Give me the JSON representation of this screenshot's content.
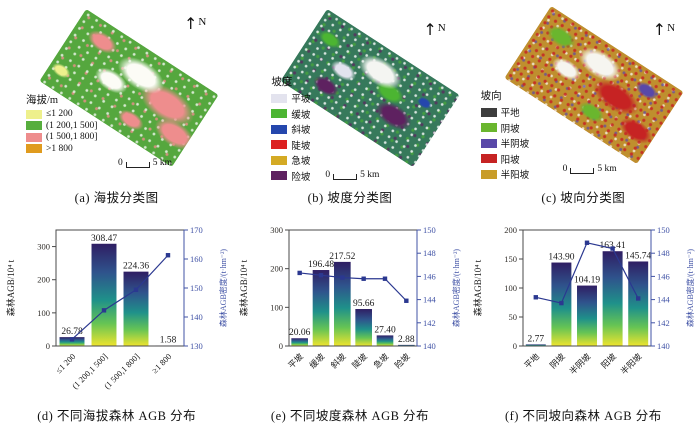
{
  "colors": {
    "right_axis": "#4153a6",
    "line": "#2b3890",
    "frame": "#4a4a4a",
    "left_text": "#33302c",
    "bar_label": "#1a1a1a",
    "bar_gradient": [
      "#2f1e63",
      "#2f538c",
      "#1f918a",
      "#66c454",
      "#eee42e"
    ]
  },
  "panels": {
    "a": {
      "caption": "(a) 海拔分类图",
      "legend_title": "海拔/m",
      "north": "N",
      "scale_zero": "0",
      "scale_label": "5 km",
      "legend": [
        {
          "label": "≤1 200",
          "color": "#eef08c"
        },
        {
          "label": "(1 200,1 500]",
          "color": "#57ae3e"
        },
        {
          "label": "(1 500,1 800]",
          "color": "#ee8d8d"
        },
        {
          "label": ">1 800",
          "color": "#e09b1e"
        }
      ]
    },
    "b": {
      "caption": "(b) 坡度分类图",
      "legend_title": "坡度",
      "north": "N",
      "scale_zero": "0",
      "scale_label": "5 km",
      "legend": [
        {
          "label": "平坡",
          "color": "#e3e3ee"
        },
        {
          "label": "缓坡",
          "color": "#4cb532"
        },
        {
          "label": "斜坡",
          "color": "#2547ad"
        },
        {
          "label": "陡坡",
          "color": "#dc2020"
        },
        {
          "label": "急坡",
          "color": "#d4aa24"
        },
        {
          "label": "险坡",
          "color": "#5e2160"
        }
      ]
    },
    "c": {
      "caption": "(c) 坡向分类图",
      "legend_title": "坡向",
      "north": "N",
      "scale_zero": "0",
      "scale_label": "5 km",
      "legend": [
        {
          "label": "平地",
          "color": "#3d3d3d"
        },
        {
          "label": "阴坡",
          "color": "#6ab62e"
        },
        {
          "label": "半阴坡",
          "color": "#5948a8"
        },
        {
          "label": "阳坡",
          "color": "#c62323"
        },
        {
          "label": "半阳坡",
          "color": "#c89c28"
        }
      ]
    }
  },
  "chart_data": [
    {
      "id": "d",
      "type": "bar+line",
      "title": "(d) 不同海拔森林 AGB 分布",
      "categories": [
        "≤1 200",
        "(1 200,1 500]",
        "(1 500,1 800]",
        "≥1 800"
      ],
      "series": [
        {
          "name": "森林AGB/10⁴ t",
          "type": "bar",
          "values": [
            26.78,
            308.47,
            224.36,
            1.58
          ]
        },
        {
          "name": "森林AGB密度/(t·hm⁻²)",
          "type": "line",
          "values": [
            132.3,
            142.3,
            149.4,
            161.3
          ]
        }
      ],
      "bar_labels": [
        "26.78",
        "308.47",
        "224.36",
        "1.58"
      ],
      "ylabel_left": "森林AGB/10⁴ t",
      "ylabel_right": "森林AGB密度/(t·hm⁻²)",
      "yticks_left": [
        0,
        100,
        200,
        300
      ],
      "ylim_left": [
        0,
        350
      ],
      "yticks_right": [
        130,
        140,
        150,
        160,
        170
      ],
      "ylim_right": [
        130,
        170
      ],
      "grid": false,
      "legend_position": "none"
    },
    {
      "id": "e",
      "type": "bar+line",
      "title": "(e) 不同坡度森林 AGB 分布",
      "categories": [
        "平坡",
        "缓坡",
        "斜坡",
        "陡坡",
        "急坡",
        "险坡"
      ],
      "series": [
        {
          "name": "森林AGB/10⁴ t",
          "type": "bar",
          "values": [
            20.06,
            196.48,
            217.52,
            95.66,
            27.4,
            2.88
          ]
        },
        {
          "name": "森林AGB密度/(t·hm⁻²)",
          "type": "line",
          "values": [
            146.3,
            146.1,
            145.9,
            145.8,
            145.8,
            143.9
          ]
        }
      ],
      "bar_labels": [
        "20.06",
        "196.48",
        "217.52",
        "95.66",
        "27.40",
        "2.88"
      ],
      "ylabel_left": "森林AGB/10⁴ t",
      "ylabel_right": "森林AGB密度/(t·hm⁻²)",
      "yticks_left": [
        0,
        100,
        200,
        300
      ],
      "ylim_left": [
        0,
        300
      ],
      "yticks_right": [
        140,
        142,
        144,
        146,
        148,
        150
      ],
      "ylim_right": [
        140,
        150
      ],
      "grid": false,
      "legend_position": "none"
    },
    {
      "id": "f",
      "type": "bar+line",
      "title": "(f) 不同坡向森林 AGB 分布",
      "categories": [
        "平地",
        "阴坡",
        "半阴坡",
        "阳坡",
        "半阳坡"
      ],
      "series": [
        {
          "name": "森林AGB/10⁴ t",
          "type": "bar",
          "values": [
            2.77,
            143.9,
            104.19,
            163.41,
            145.74
          ]
        },
        {
          "name": "森林AGB密度/(t·hm⁻²)",
          "type": "line",
          "values": [
            144.2,
            143.7,
            148.9,
            148.4,
            144.1
          ]
        }
      ],
      "bar_labels": [
        "2.77",
        "143.90",
        "104.19",
        "163.41",
        "145.74"
      ],
      "ylabel_left": "森林AGB/10⁴ t",
      "ylabel_right": "森林AGB密度/(t·hm⁻²)",
      "yticks_left": [
        0,
        50,
        100,
        150,
        200
      ],
      "ylim_left": [
        0,
        200
      ],
      "yticks_right": [
        140,
        142,
        144,
        146,
        148,
        150
      ],
      "ylim_right": [
        140,
        150
      ],
      "grid": false,
      "legend_position": "none"
    }
  ]
}
